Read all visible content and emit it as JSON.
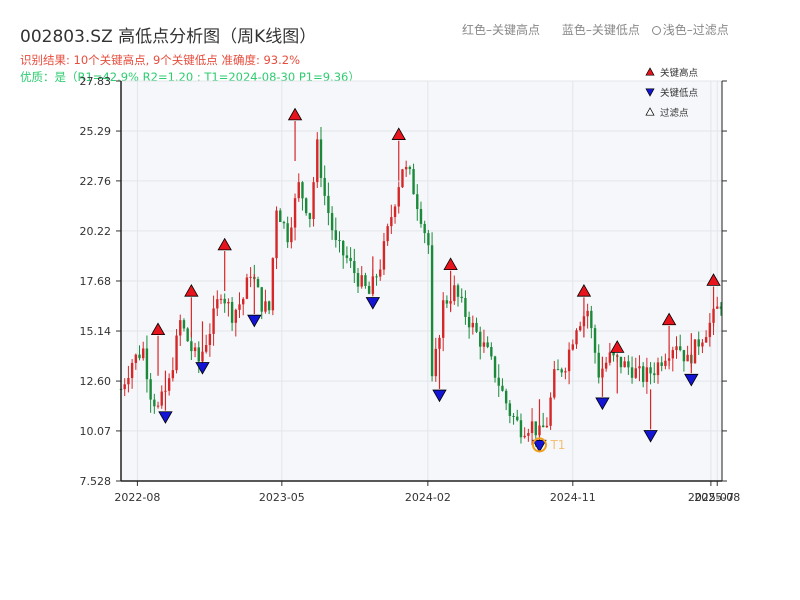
{
  "header": {
    "title": "002803.SZ 高低点分析图（周K线图）",
    "legend_note_red": "红色–关键高点",
    "legend_note_blue": "蓝色–关键低点",
    "legend_note_hollow": "浅色–过滤点",
    "result_text": "识别结果: 10个关键高点, 9个关键低点  准确度: 93.2%",
    "quality_text": "优质：是（R1=42.9%  R2=1.20 ; T1=2024-08-30 P1=9.36）"
  },
  "colors": {
    "up": "#d62728",
    "down": "#1a8a3a",
    "high_marker": "#e8141d",
    "low_marker": "#1414d4",
    "t1_circle": "#f0a020",
    "plot_bg": "#f5f7fa"
  },
  "chart_data": {
    "type": "candlestick",
    "xlim": [
      "2022-07-01",
      "2025-08-10"
    ],
    "ylim": [
      7.528,
      27.83
    ],
    "y_ticks": [
      "7.528",
      "10.07",
      "12.60",
      "15.14",
      "17.68",
      "20.22",
      "22.76",
      "25.29",
      "27.83"
    ],
    "x_ticks": [
      {
        "date": "2022-08-01",
        "label": "2022-08"
      },
      {
        "date": "2023-05-01",
        "label": "2023-05"
      },
      {
        "date": "2024-02-01",
        "label": "2024-02"
      },
      {
        "date": "2024-11-01",
        "label": "2024-11"
      },
      {
        "date": "2025-07-20",
        "label": "2025-07"
      },
      {
        "date": "2025-08-01",
        "label": "2025-08"
      }
    ],
    "legend": [
      {
        "symbol": "high",
        "label": "关键高点"
      },
      {
        "symbol": "low",
        "label": "关键低点"
      },
      {
        "symbol": "filtered",
        "label": "过滤点"
      }
    ],
    "weekly_close_path": [
      [
        "2022-07-01",
        12.2
      ],
      [
        "2022-07-22",
        13.6
      ],
      [
        "2022-08-12",
        14.2
      ],
      [
        "2022-08-26",
        12.0
      ],
      [
        "2022-09-09",
        11.2
      ],
      [
        "2022-09-30",
        12.5
      ],
      [
        "2022-10-21",
        15.6
      ],
      [
        "2022-11-11",
        14.2
      ],
      [
        "2022-11-25",
        13.6
      ],
      [
        "2022-12-16",
        15.2
      ],
      [
        "2023-01-06",
        17.2
      ],
      [
        "2023-01-27",
        16.0
      ],
      [
        "2023-02-17",
        16.8
      ],
      [
        "2023-03-03",
        18.2
      ],
      [
        "2023-03-24",
        16.5
      ],
      [
        "2023-04-07",
        16.2
      ],
      [
        "2023-04-21",
        21.5
      ],
      [
        "2023-05-12",
        20.0
      ],
      [
        "2023-06-02",
        22.5
      ],
      [
        "2023-06-23",
        21.0
      ],
      [
        "2023-07-07",
        24.5
      ],
      [
        "2023-07-21",
        22.0
      ],
      [
        "2023-08-11",
        19.5
      ],
      [
        "2023-09-01",
        18.8
      ],
      [
        "2023-09-22",
        17.8
      ],
      [
        "2023-10-13",
        17.0
      ],
      [
        "2023-11-03",
        18.5
      ],
      [
        "2023-11-24",
        21.0
      ],
      [
        "2023-12-15",
        23.5
      ],
      [
        "2023-12-29",
        23.0
      ],
      [
        "2024-01-19",
        21.0
      ],
      [
        "2024-02-02",
        19.5
      ],
      [
        "2024-02-09",
        12.5
      ],
      [
        "2024-03-01",
        16.5
      ],
      [
        "2024-03-22",
        17.2
      ],
      [
        "2024-04-12",
        16.0
      ],
      [
        "2024-05-03",
        15.0
      ],
      [
        "2024-05-24",
        14.0
      ],
      [
        "2024-06-14",
        12.5
      ],
      [
        "2024-07-05",
        11.0
      ],
      [
        "2024-07-26",
        10.2
      ],
      [
        "2024-08-16",
        10.4
      ],
      [
        "2024-08-30",
        9.9
      ],
      [
        "2024-09-13",
        10.5
      ],
      [
        "2024-09-27",
        12.8
      ],
      [
        "2024-10-18",
        13.5
      ],
      [
        "2024-11-08",
        15.5
      ],
      [
        "2024-11-29",
        16.2
      ],
      [
        "2024-12-20",
        13.0
      ],
      [
        "2025-01-10",
        13.8
      ],
      [
        "2025-01-31",
        13.5
      ],
      [
        "2025-02-21",
        13.2
      ],
      [
        "2025-03-14",
        12.8
      ],
      [
        "2025-04-04",
        13.2
      ],
      [
        "2025-04-25",
        14.0
      ],
      [
        "2025-05-16",
        14.6
      ],
      [
        "2025-06-06",
        13.6
      ],
      [
        "2025-06-27",
        14.6
      ],
      [
        "2025-07-18",
        15.5
      ],
      [
        "2025-08-08",
        16.6
      ]
    ],
    "key_highs": [
      {
        "date": "2022-09-09",
        "price": 14.9
      },
      {
        "date": "2022-11-11",
        "price": 16.85
      },
      {
        "date": "2023-01-13",
        "price": 19.2
      },
      {
        "date": "2023-05-26",
        "price": 25.8
      },
      {
        "date": "2023-12-08",
        "price": 24.8
      },
      {
        "date": "2024-03-15",
        "price": 18.2
      },
      {
        "date": "2024-11-22",
        "price": 16.85
      },
      {
        "date": "2025-01-24",
        "price": 14.0
      },
      {
        "date": "2025-05-02",
        "price": 15.4
      },
      {
        "date": "2025-07-25",
        "price": 17.4
      }
    ],
    "key_lows": [
      {
        "date": "2022-09-23",
        "price": 11.1
      },
      {
        "date": "2022-12-02",
        "price": 13.6
      },
      {
        "date": "2023-03-10",
        "price": 16.0
      },
      {
        "date": "2023-10-20",
        "price": 16.9
      },
      {
        "date": "2024-02-23",
        "price": 12.2
      },
      {
        "date": "2024-12-27",
        "price": 11.8
      },
      {
        "date": "2025-03-28",
        "price": 10.15
      },
      {
        "date": "2025-06-13",
        "price": 13.0
      },
      {
        "date": "2024-08-30",
        "price": 9.65
      }
    ],
    "t1_marker": {
      "date": "2024-08-30",
      "price": 9.36,
      "label": "T1"
    }
  }
}
